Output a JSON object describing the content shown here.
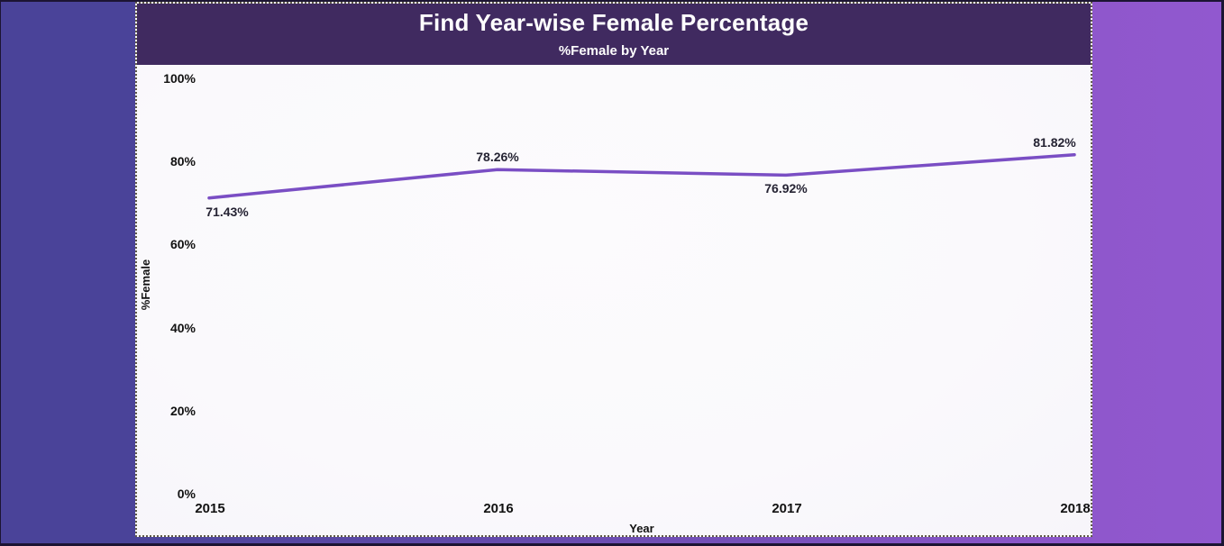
{
  "window": {
    "frame_color": "#1c1433",
    "background_left": "#4a4399",
    "background_right": "#8f57cc"
  },
  "chart_data": {
    "type": "line",
    "title": "Find Year-wise Female Percentage",
    "subtitle": "%Female by Year",
    "xlabel": "Year",
    "ylabel": "%Female",
    "categories": [
      "2015",
      "2016",
      "2017",
      "2018"
    ],
    "values": [
      71.43,
      78.26,
      76.92,
      81.82
    ],
    "point_labels": [
      "71.43%",
      "78.26%",
      "76.92%",
      "81.82%"
    ],
    "ylim": [
      0,
      100
    ],
    "yticks": [
      {
        "label": "100%",
        "value": 100
      },
      {
        "label": "80%",
        "value": 80
      },
      {
        "label": "60%",
        "value": 60
      },
      {
        "label": "40%",
        "value": 40
      },
      {
        "label": "20%",
        "value": 20
      },
      {
        "label": "0%",
        "value": 0
      }
    ],
    "grid": false,
    "legend": "none",
    "label_placements": [
      "below",
      "above",
      "below",
      "above"
    ],
    "label_offsets_x": [
      20,
      0,
      0,
      -22
    ],
    "colors": {
      "line": "#7a4ec4",
      "header_bg": "#402a60",
      "title_text": "#ffffff",
      "data_label_text": "#252333",
      "axis_text": "#111111",
      "plot_bg": "#fbfafc"
    }
  }
}
